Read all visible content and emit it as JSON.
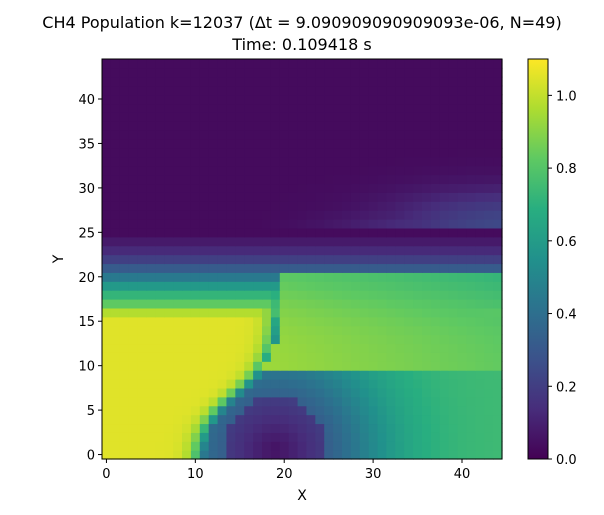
{
  "chart_data": {
    "type": "heatmap",
    "title": "CH4 Population k=12037 (Δt = 9.090909090909093e-06, N=49)",
    "subtitle": "Time: 0.109418 s",
    "xlabel": "X",
    "ylabel": "Y",
    "x_extent": [
      -0.5,
      44.5
    ],
    "y_extent": [
      -0.5,
      44.5
    ],
    "xticks": [
      0,
      10,
      20,
      30,
      40
    ],
    "yticks": [
      0,
      5,
      10,
      15,
      20,
      25,
      30,
      35,
      40
    ],
    "grid": false,
    "colormap": "viridis",
    "colorbar": {
      "range": [
        0.0,
        1.1
      ],
      "ticks": [
        0.0,
        0.2,
        0.4,
        0.6,
        0.8,
        1.0
      ],
      "tick_labels": [
        "0.0",
        "0.2",
        "0.4",
        "0.6",
        "0.8",
        "1.0"
      ]
    },
    "grid_size": [
      45,
      45
    ],
    "field_description_regions": [
      {
        "region": "x 0-10, y 0-18",
        "value": 1.05
      },
      {
        "region": "y 18-20 band",
        "value": 0.9
      },
      {
        "region": "y 20-23 band",
        "value": 0.6
      },
      {
        "region": "y 23-25 band",
        "value": 0.3
      },
      {
        "region": "y 26-44",
        "value": 0.02
      },
      {
        "region": "minimum near x 18-22, y 0-2",
        "value": 0.01
      },
      {
        "region": "x 40-44, y 0-5",
        "value": 0.5
      }
    ]
  }
}
